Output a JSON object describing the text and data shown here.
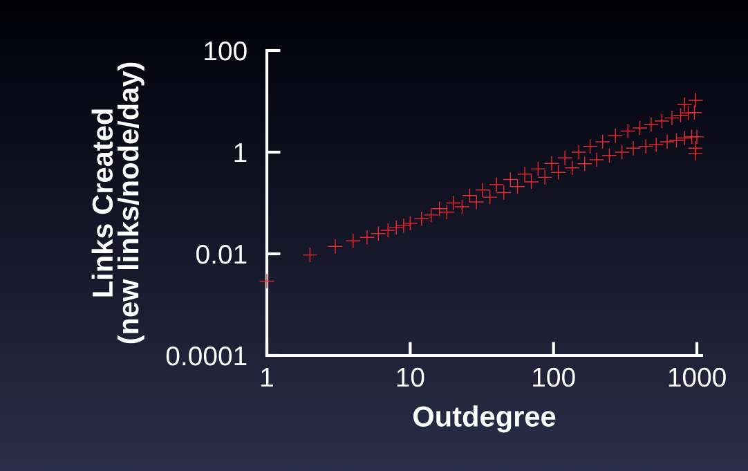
{
  "chart_data": {
    "type": "scatter",
    "xlabel": "Outdegree",
    "ylabel": "Links Created\n(new links/node/day)",
    "log": "xy",
    "xlim": [
      1,
      1080
    ],
    "ylim": [
      0.0001,
      100
    ],
    "xticks": [
      1,
      10,
      100,
      1000
    ],
    "yticks": [
      0.0001,
      0.01,
      1,
      100
    ],
    "marker": "cross",
    "grid": false,
    "series": [
      {
        "color": "#e8282e",
        "x": [
          1,
          2,
          3,
          4,
          5,
          6,
          7,
          8,
          9,
          10,
          12,
          14,
          16,
          18,
          20,
          23,
          26,
          29,
          32,
          36,
          40,
          45,
          50,
          56,
          63,
          70,
          78,
          87,
          97,
          108,
          120,
          135,
          150,
          165,
          180,
          200,
          220,
          245,
          270,
          300,
          330,
          360,
          400,
          440,
          480,
          520,
          570,
          620,
          670,
          720,
          770,
          820,
          870,
          920,
          960,
          1000,
          980,
          975,
          975,
          820
        ],
        "values": [
          0.0029,
          0.0095,
          0.014,
          0.018,
          0.021,
          0.025,
          0.029,
          0.033,
          0.036,
          0.04,
          0.049,
          0.058,
          0.077,
          0.066,
          0.1,
          0.084,
          0.14,
          0.105,
          0.18,
          0.13,
          0.23,
          0.16,
          0.29,
          0.21,
          0.37,
          0.26,
          0.47,
          0.32,
          0.6,
          0.4,
          0.77,
          0.49,
          1.0,
          0.59,
          1.3,
          0.71,
          1.6,
          0.86,
          2.1,
          1.0,
          2.6,
          1.2,
          3.0,
          1.3,
          3.5,
          1.4,
          4.1,
          1.6,
          4.7,
          1.7,
          5.3,
          1.9,
          5.9,
          2.0,
          6.0,
          2.0,
          10.5,
          1.2,
          0.95,
          8.7
        ]
      }
    ]
  }
}
